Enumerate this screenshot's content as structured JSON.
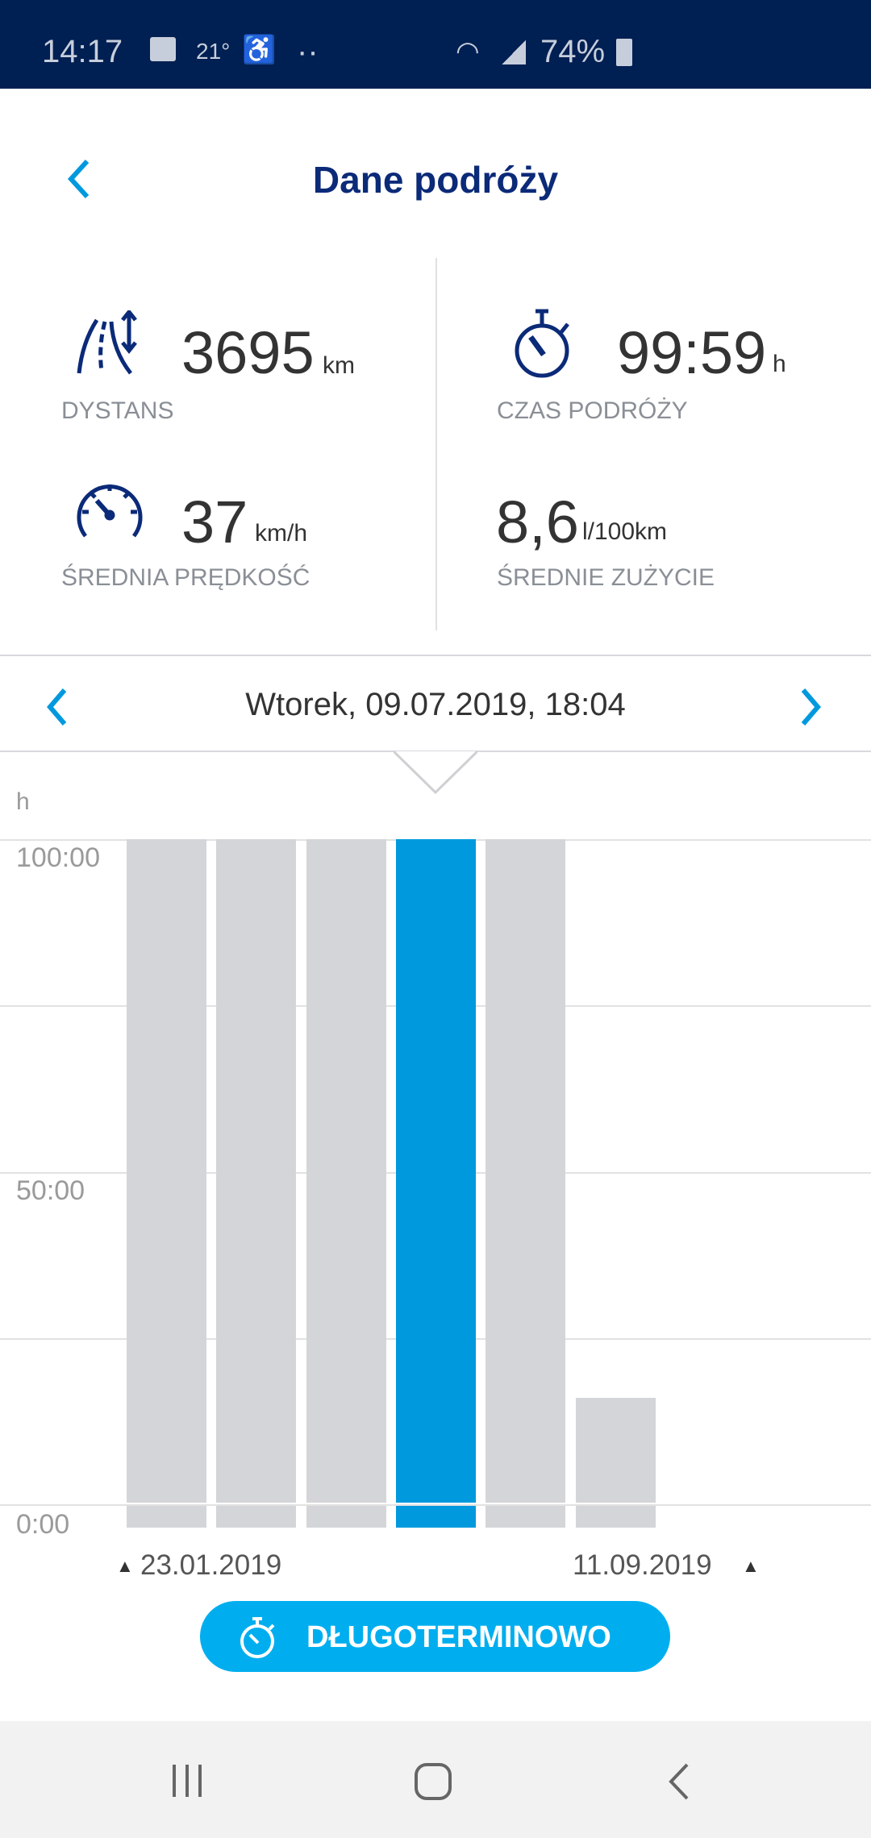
{
  "status_bar": {
    "time": "14:17",
    "temperature": "21°",
    "dots": "··",
    "battery": "74%"
  },
  "header": {
    "title": "Dane podróży",
    "back_icon": "chevron-left-icon"
  },
  "stats": {
    "distance": {
      "value": "3695",
      "unit": "km",
      "label": "DYSTANS",
      "icon": "road-distance-icon"
    },
    "travel_time": {
      "value": "99:59",
      "unit": "h",
      "label": "CZAS PODRÓŻY",
      "icon": "stopwatch-icon"
    },
    "avg_speed": {
      "value": "37",
      "unit": "km/h",
      "label": "ŚREDNIA PRĘDKOŚĆ",
      "icon": "speedometer-icon"
    },
    "avg_consumption": {
      "value": "8,6",
      "unit": "l/100km",
      "label": "ŚREDNIE ZUŻYCIE"
    }
  },
  "date_nav": {
    "label": "Wtorek, 09.07.2019, 18:04"
  },
  "colors": {
    "accent": "#0099dd",
    "bar": "#d4d5d9",
    "navy": "#0b2a78",
    "button": "#00aeef"
  },
  "chart_data": {
    "type": "bar",
    "ylabel": "h",
    "ylim": [
      0,
      100
    ],
    "yticks": [
      "0:00",
      "50:00",
      "100:00"
    ],
    "values": [
      100,
      100,
      100,
      99.98,
      100,
      16
    ],
    "selected_index": 3,
    "start_label": "23.01.2019",
    "end_label": "11.09.2019"
  },
  "mode_button": {
    "label": "DŁUGOTERMINOWO"
  }
}
